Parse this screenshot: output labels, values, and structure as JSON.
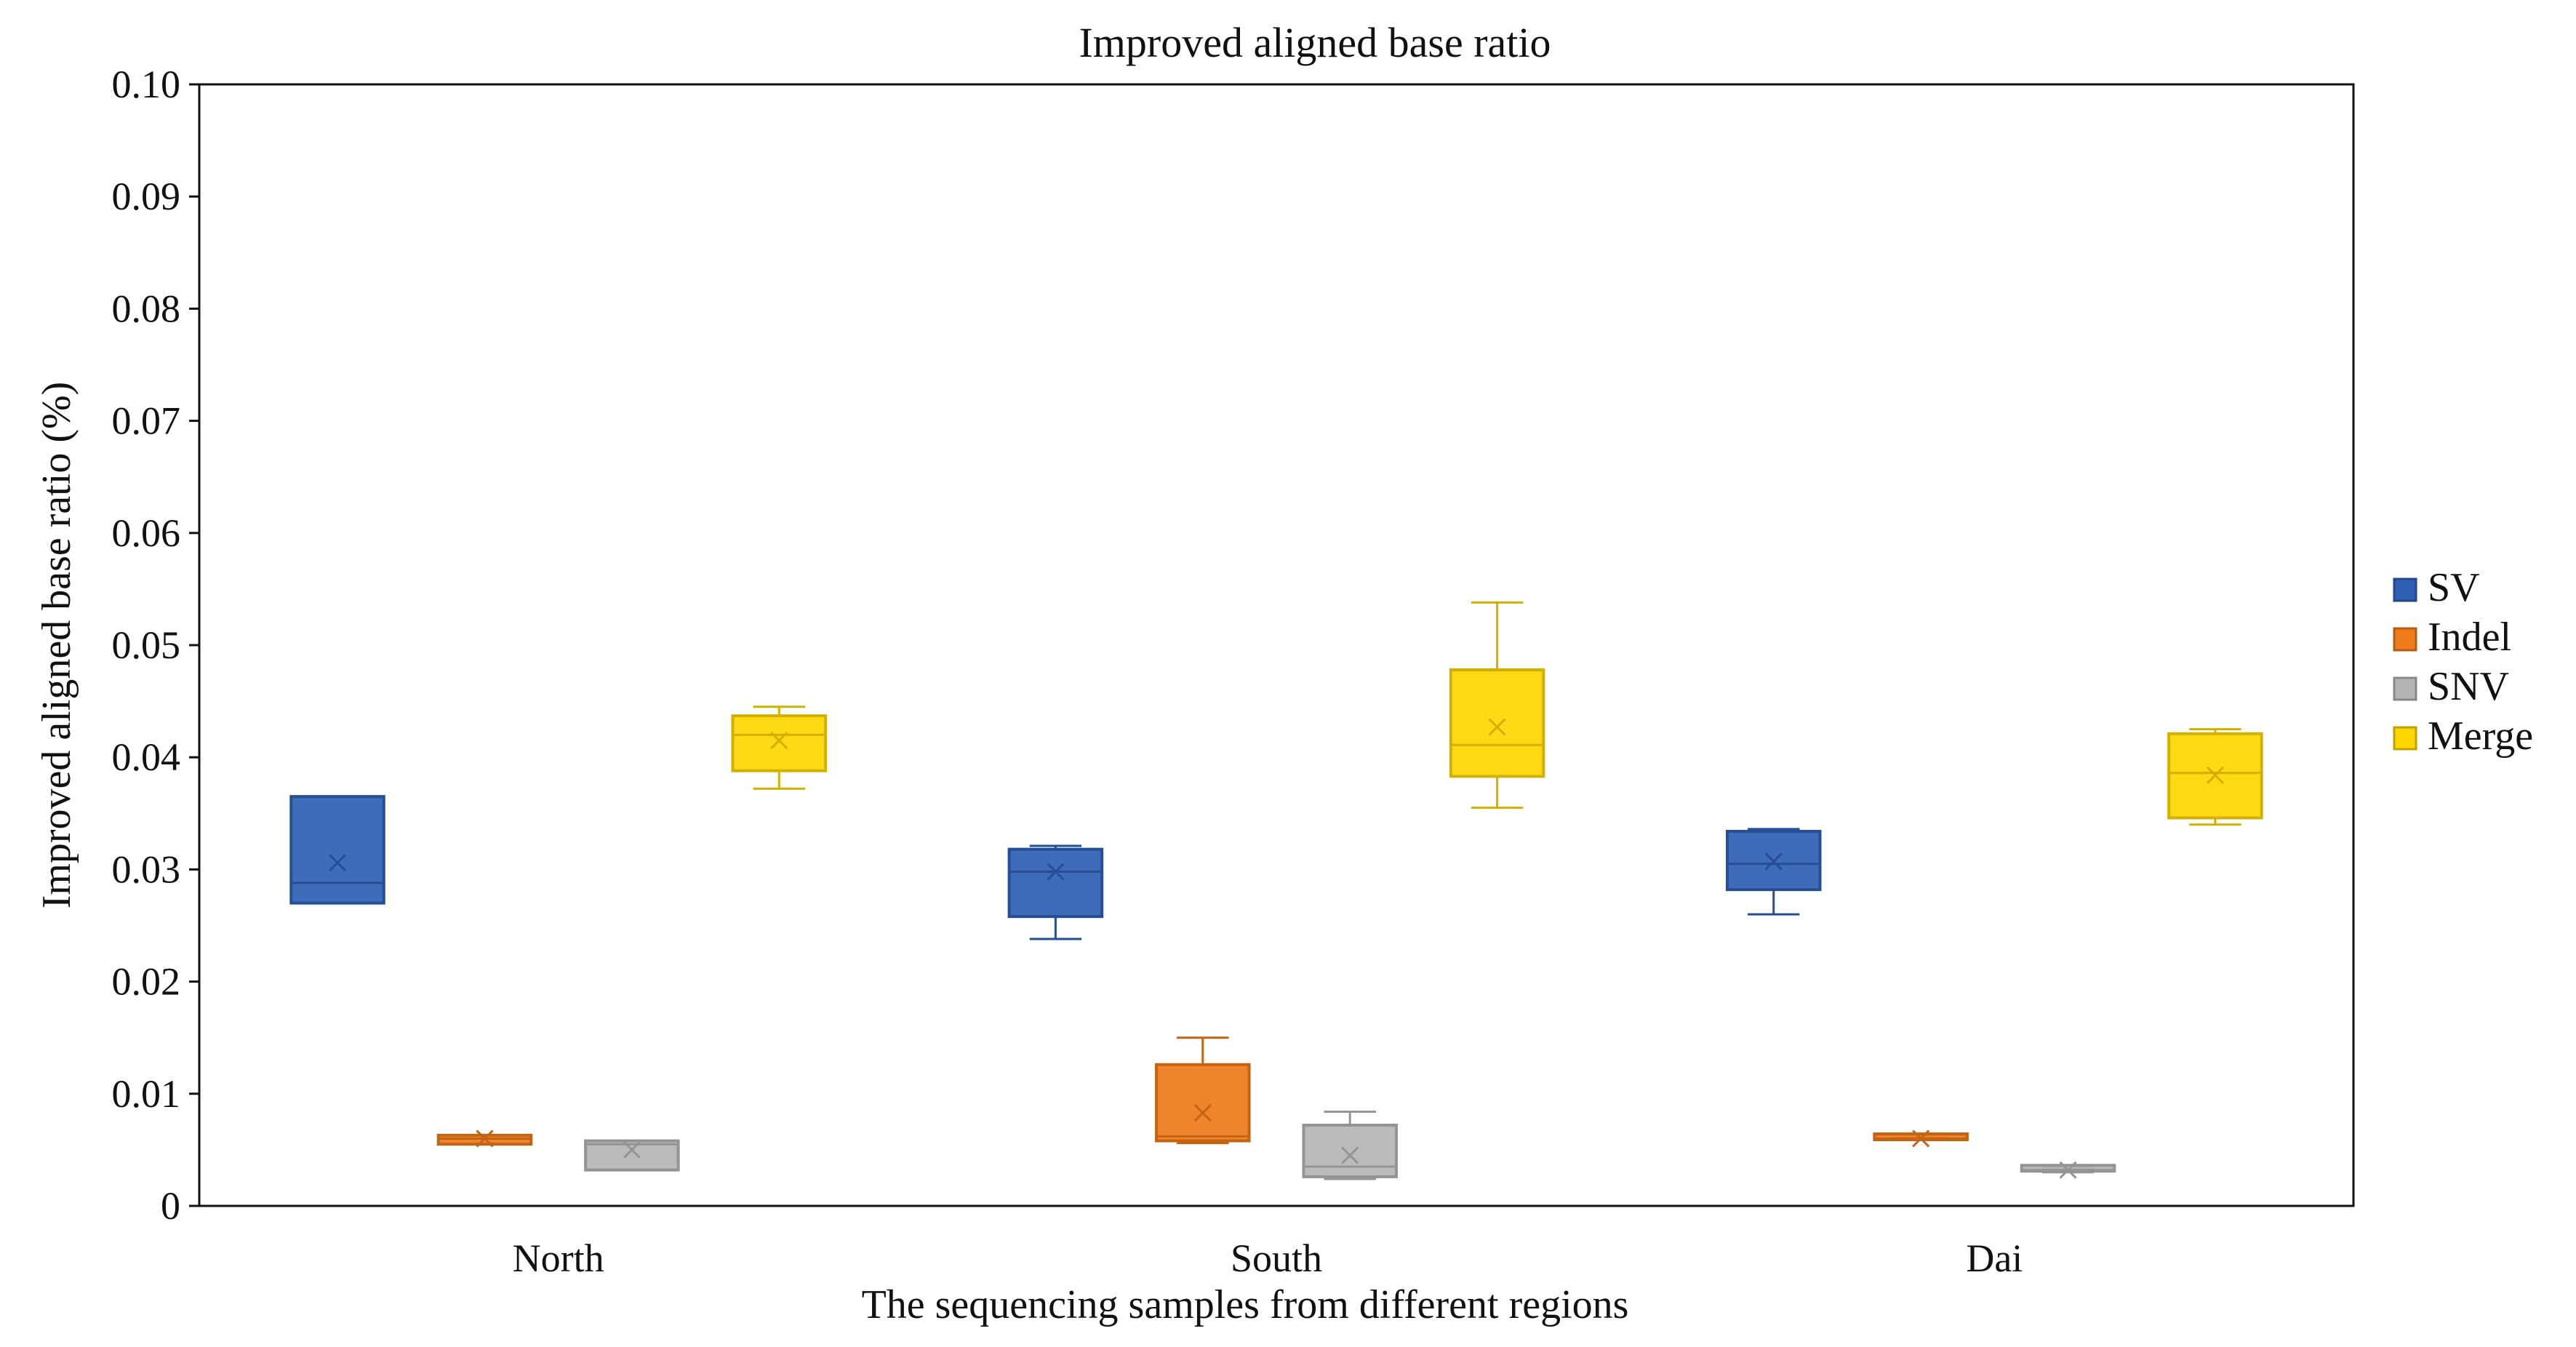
{
  "chart_data": {
    "type": "box",
    "title": "Improved aligned base ratio",
    "xlabel": "The sequencing samples from different regions",
    "ylabel": "Improved aligned base ratio (%)",
    "ylim": [
      0,
      0.1
    ],
    "yticks": [
      0,
      0.01,
      0.02,
      0.03,
      0.04,
      0.05,
      0.06,
      0.07,
      0.08,
      0.09,
      0.1
    ],
    "ytick_labels": [
      "0",
      "0.01",
      "0.02",
      "0.03",
      "0.04",
      "0.05",
      "0.06",
      "0.07",
      "0.08",
      "0.09",
      "0.10"
    ],
    "categories": [
      "North",
      "South",
      "Dai"
    ],
    "grid": false,
    "legend_position": "right",
    "series": [
      {
        "name": "SV",
        "color": "#2E5FB5",
        "boxes": [
          {
            "min": 0.027,
            "q1": 0.027,
            "median": 0.0288,
            "q3": 0.0365,
            "max": 0.0365,
            "mean": 0.0306
          },
          {
            "min": 0.0238,
            "q1": 0.0258,
            "median": 0.0298,
            "q3": 0.0318,
            "max": 0.0321,
            "mean": 0.0298
          },
          {
            "min": 0.026,
            "q1": 0.0282,
            "median": 0.0305,
            "q3": 0.0334,
            "max": 0.0336,
            "mean": 0.0307
          }
        ]
      },
      {
        "name": "Indel",
        "color": "#EE7A1A",
        "boxes": [
          {
            "min": 0.0055,
            "q1": 0.0055,
            "median": 0.006,
            "q3": 0.0063,
            "max": 0.0063,
            "mean": 0.006
          },
          {
            "min": 0.0056,
            "q1": 0.0058,
            "median": 0.0062,
            "q3": 0.0126,
            "max": 0.015,
            "mean": 0.0083
          },
          {
            "min": 0.0059,
            "q1": 0.0059,
            "median": 0.006,
            "q3": 0.0061,
            "max": 0.0061,
            "mean": 0.006
          }
        ]
      },
      {
        "name": "SNV",
        "color": "#B5B5B5",
        "boxes": [
          {
            "min": 0.0032,
            "q1": 0.0032,
            "median": 0.0055,
            "q3": 0.0058,
            "max": 0.0058,
            "mean": 0.005
          },
          {
            "min": 0.0024,
            "q1": 0.0026,
            "median": 0.0035,
            "q3": 0.0072,
            "max": 0.0084,
            "mean": 0.0045
          },
          {
            "min": 0.003,
            "q1": 0.0031,
            "median": 0.0032,
            "q3": 0.0033,
            "max": 0.0034,
            "mean": 0.0032
          }
        ]
      },
      {
        "name": "Merge",
        "color": "#FFD700",
        "boxes": [
          {
            "min": 0.0372,
            "q1": 0.0388,
            "median": 0.042,
            "q3": 0.0437,
            "max": 0.0445,
            "mean": 0.0415
          },
          {
            "min": 0.0355,
            "q1": 0.0383,
            "median": 0.0411,
            "q3": 0.0478,
            "max": 0.0538,
            "mean": 0.0427
          },
          {
            "min": 0.034,
            "q1": 0.0346,
            "median": 0.0386,
            "q3": 0.0421,
            "max": 0.0425,
            "mean": 0.0384
          }
        ]
      }
    ]
  }
}
